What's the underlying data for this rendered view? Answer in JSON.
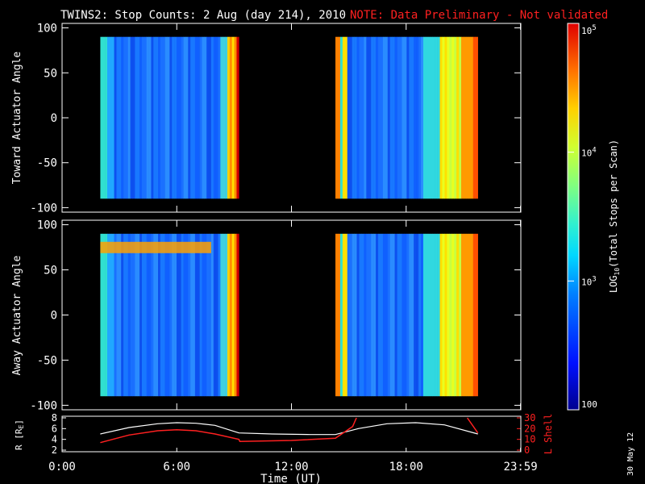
{
  "chart_data": {
    "type": "heatmap",
    "title": "TWINS2: Stop Counts:  2 Aug (day 214), 2010",
    "note": "NOTE: Data Preliminary - Not validated",
    "xlabel": "Time (UT)",
    "x_ticks": [
      "0:00",
      "6:00",
      "12:00",
      "18:00",
      "23:59"
    ],
    "x_tick_hours": [
      0,
      6,
      12,
      18,
      23.983
    ],
    "xlim": [
      0,
      24
    ],
    "panels": [
      {
        "ylabel": "Toward Actuator Angle",
        "ylim": [
          -105,
          105
        ],
        "y_ticks": [
          100,
          50,
          0,
          -50,
          -100
        ],
        "data_intervals_hours": [
          [
            2.0,
            9.25
          ],
          [
            14.3,
            21.75
          ]
        ],
        "angle_range": [
          -90,
          90
        ]
      },
      {
        "ylabel": "Away Actuator Angle",
        "ylim": [
          -105,
          105
        ],
        "y_ticks": [
          100,
          50,
          0,
          -50,
          -100
        ],
        "data_intervals_hours": [
          [
            2.0,
            9.25
          ],
          [
            14.3,
            21.75
          ]
        ],
        "angle_range": [
          -90,
          90
        ]
      }
    ],
    "colorbar": {
      "label": "LOG",
      "label_sub": "10",
      "label_rest": "(Total Stops per Scan)",
      "scale": "log",
      "range": [
        100,
        100000
      ],
      "ticks": [
        {
          "value": 100,
          "base": "100",
          "exp": ""
        },
        {
          "value": 1000,
          "base": "10",
          "exp": "3"
        },
        {
          "value": 10000,
          "base": "10",
          "exp": "4"
        },
        {
          "value": 100000,
          "base": "10",
          "exp": "5"
        }
      ]
    },
    "orbit_panel": {
      "ylabel_left": "R [R",
      "ylabel_left_sub": "E",
      "ylabel_left_end": "]",
      "ylabel_right": "L Shell",
      "left_ticks": [
        8,
        6,
        4,
        2
      ],
      "right_ticks": [
        30,
        20,
        10,
        0
      ],
      "ylim_left": [
        2,
        8
      ],
      "ylim_right": [
        0,
        30
      ],
      "r_series": {
        "name": "R",
        "x": [
          2.0,
          3.5,
          5.0,
          6.0,
          7.0,
          8.0,
          9.25,
          11.0,
          13.0,
          14.3,
          15.5,
          17.0,
          18.5,
          20.0,
          21.75
        ],
        "y": [
          5.0,
          6.2,
          6.9,
          7.1,
          7.0,
          6.6,
          5.2,
          5.0,
          4.9,
          4.9,
          6.0,
          6.9,
          7.1,
          6.7,
          5.0
        ]
      },
      "l_series": {
        "name": "L Shell",
        "x": [
          2.0,
          3.5,
          5.0,
          6.0,
          7.0,
          8.0,
          9.25,
          9.3,
          12.0,
          14.3,
          15.2,
          15.4
        ],
        "y": [
          7,
          14,
          18,
          19,
          18,
          15,
          10,
          8,
          9,
          11,
          22,
          30
        ],
        "x2": [
          21.2,
          21.75
        ],
        "y2": [
          30,
          16
        ]
      }
    }
  },
  "footer": {
    "date_stamp": "30 May 12"
  },
  "colors": {
    "background": "#000000",
    "axes": "#ffffff",
    "note": "#ff2020",
    "l_shell": "#ff2020",
    "r_line": "#ffffff"
  }
}
